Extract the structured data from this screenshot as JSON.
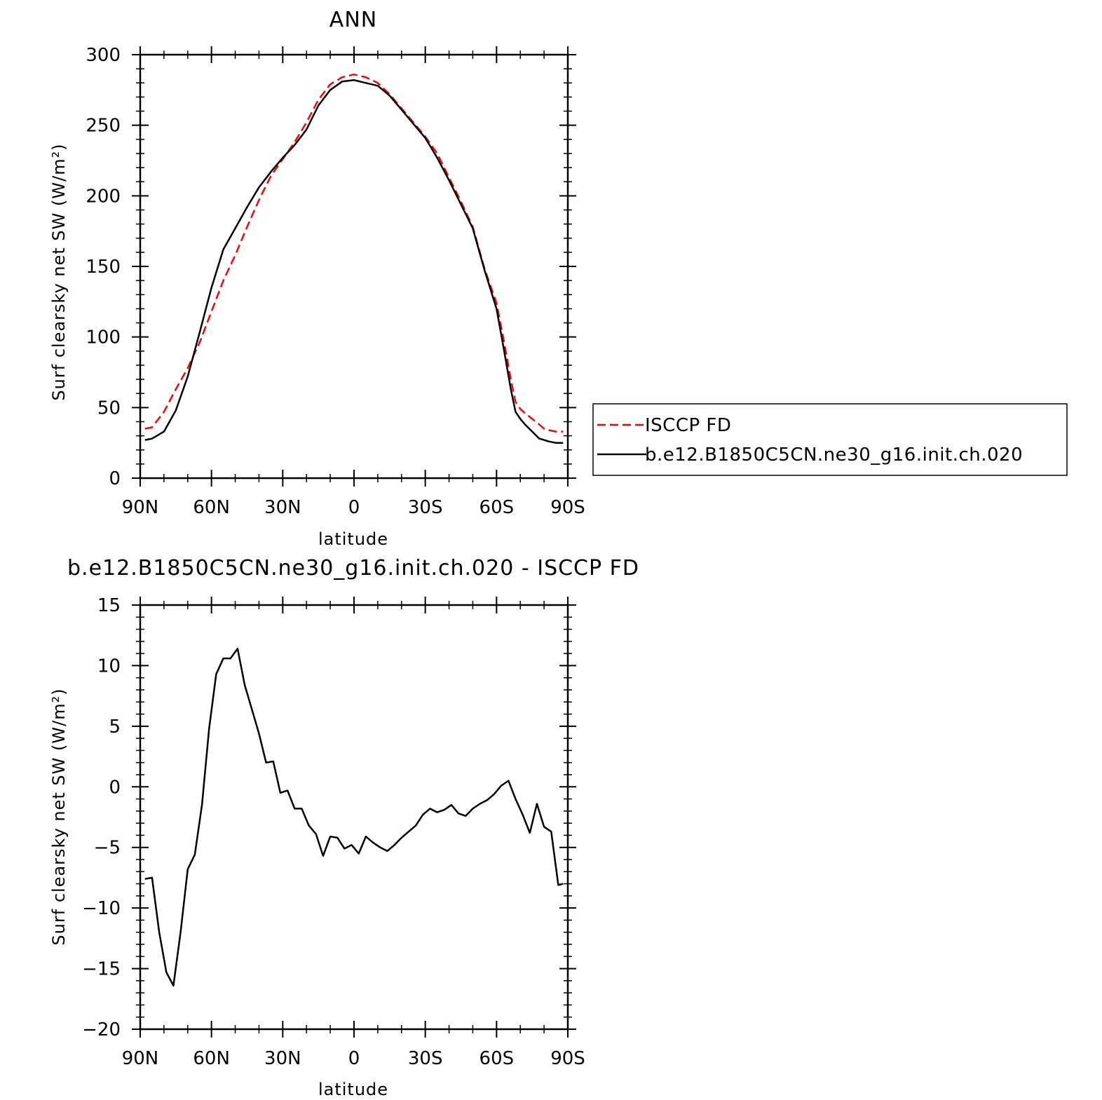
{
  "chart_data": [
    {
      "type": "line",
      "title": "ANN",
      "xlabel": "latitude",
      "ylabel": "Surf clearsky net SW (W/m²)",
      "xlim": [
        90,
        -90
      ],
      "ylim": [
        0,
        300
      ],
      "xticks": [
        "90N",
        "60N",
        "30N",
        "0",
        "30S",
        "60S",
        "90S"
      ],
      "yticks": [
        "0",
        "50",
        "100",
        "150",
        "200",
        "250",
        "300"
      ],
      "legend": "right",
      "series": [
        {
          "name": "ISCCP FD",
          "color": "#ff0000",
          "style": "dashed",
          "x": [
            88,
            85,
            80,
            75,
            70,
            65,
            60,
            55,
            50,
            45,
            40,
            35,
            30,
            25,
            20,
            15,
            10,
            5,
            0,
            -5,
            -10,
            -15,
            -20,
            -25,
            -30,
            -35,
            -40,
            -45,
            -50,
            -55,
            -60,
            -63,
            -66,
            -68,
            -70,
            -72,
            -75,
            -78,
            -80,
            -82,
            -85,
            -88
          ],
          "y": [
            35,
            36,
            47,
            63,
            78,
            96,
            118,
            140,
            158,
            178,
            197,
            214,
            226,
            238,
            252,
            268,
            279,
            284,
            286,
            284,
            280,
            272,
            262,
            252,
            242,
            230,
            213,
            196,
            178,
            148,
            124,
            98,
            70,
            54,
            49,
            46,
            42,
            38,
            35,
            34,
            33,
            33
          ]
        },
        {
          "name": "b.e12.B1850C5CN.ne30_g16.init.ch.020",
          "color": "#000000",
          "style": "solid",
          "x": [
            88,
            85,
            80,
            75,
            70,
            65,
            60,
            55,
            50,
            45,
            40,
            35,
            30,
            25,
            20,
            15,
            10,
            5,
            0,
            -5,
            -10,
            -15,
            -20,
            -25,
            -30,
            -35,
            -40,
            -45,
            -50,
            -55,
            -60,
            -63,
            -66,
            -68,
            -70,
            -72,
            -75,
            -78,
            -80,
            -82,
            -85,
            -88
          ],
          "y": [
            27,
            28,
            33,
            48,
            72,
            103,
            135,
            162,
            177,
            192,
            206,
            217,
            227,
            236,
            247,
            264,
            275,
            281,
            282,
            280,
            278,
            271,
            261,
            251,
            241,
            227,
            211,
            194,
            177,
            147,
            120,
            92,
            63,
            47,
            42,
            38,
            33,
            28,
            27,
            26,
            25,
            25
          ]
        }
      ]
    },
    {
      "type": "line",
      "title": "b.e12.B1850C5CN.ne30_g16.init.ch.020 - ISCCP FD",
      "xlabel": "latitude",
      "ylabel": "Surf clearsky net SW (W/m²)",
      "xlim": [
        90,
        -90
      ],
      "ylim": [
        -20,
        15
      ],
      "xticks": [
        "90N",
        "60N",
        "30N",
        "0",
        "30S",
        "60S",
        "90S"
      ],
      "yticks": [
        "-20",
        "-15",
        "-10",
        "-5",
        "0",
        "5",
        "10",
        "15"
      ],
      "series": [
        {
          "color": "#000000",
          "style": "solid",
          "x": [
            88,
            85,
            82,
            79,
            76,
            73,
            70,
            67,
            64,
            61,
            58,
            55,
            52,
            49,
            46,
            43,
            40,
            37,
            34,
            31,
            28,
            25,
            22,
            19,
            16,
            13,
            10,
            7,
            4,
            1,
            -2,
            -5,
            -8,
            -11,
            -14,
            -17,
            -20,
            -23,
            -26,
            -29,
            -32,
            -35,
            -38,
            -41,
            -44,
            -47,
            -50,
            -53,
            -56,
            -59,
            -62,
            -65,
            -68,
            -71,
            -74,
            -77,
            -80,
            -83,
            -86,
            -88
          ],
          "y": [
            -7.6,
            -7.5,
            -12.0,
            -15.3,
            -16.4,
            -12.0,
            -6.8,
            -5.6,
            -1.5,
            4.8,
            9.3,
            10.6,
            10.6,
            11.4,
            8.4,
            6.4,
            4.4,
            2.0,
            2.1,
            -0.5,
            -0.3,
            -1.8,
            -1.8,
            -3.2,
            -3.9,
            -5.7,
            -4.1,
            -4.2,
            -5.1,
            -4.8,
            -5.5,
            -4.1,
            -4.6,
            -5.0,
            -5.3,
            -4.8,
            -4.2,
            -3.7,
            -3.2,
            -2.3,
            -1.8,
            -2.1,
            -1.9,
            -1.5,
            -2.2,
            -2.4,
            -1.8,
            -1.4,
            -1.1,
            -0.6,
            0.1,
            0.5,
            -1.0,
            -2.3,
            -3.8,
            -1.4,
            -3.3,
            -3.7,
            -8.1,
            -8.0
          ]
        }
      ]
    }
  ]
}
